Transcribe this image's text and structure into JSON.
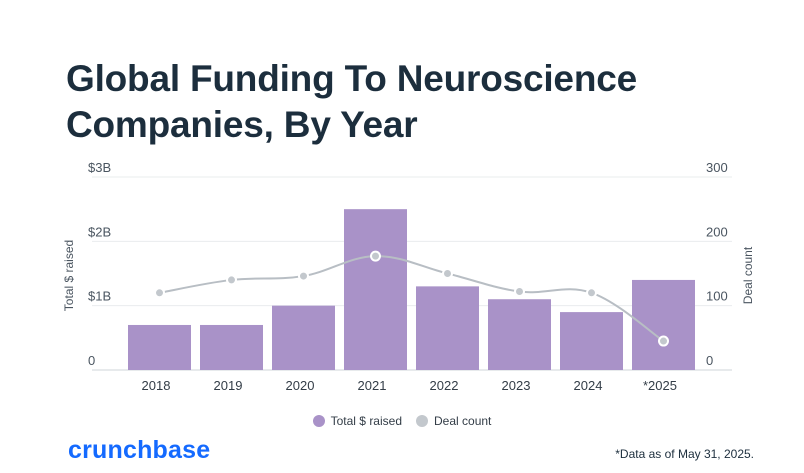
{
  "title": "Global Funding To Neuroscience Companies, By Year",
  "brand": "crunchbase",
  "footnote": "*Data as of May 31, 2025.",
  "colors": {
    "bar": "#a992c8",
    "line": "#b8bec4",
    "point": "#c3c8cd",
    "brand": "#146aff",
    "title": "#1c2e3d"
  },
  "chart_data": {
    "type": "bar",
    "categories": [
      "2018",
      "2019",
      "2020",
      "2021",
      "2022",
      "2023",
      "2024",
      "*2025"
    ],
    "series": [
      {
        "name": "Total $ raised",
        "type": "bar",
        "axis": "left",
        "values": [
          0.7,
          0.7,
          1.0,
          2.5,
          1.3,
          1.1,
          0.9,
          1.4
        ]
      },
      {
        "name": "Deal count",
        "type": "line",
        "axis": "right",
        "values": [
          120,
          140,
          146,
          177,
          150,
          122,
          120,
          45
        ]
      }
    ],
    "ylabel": "Total $ raised",
    "y2label": "Deal count",
    "ylim": [
      0,
      3
    ],
    "y2lim": [
      0,
      300
    ],
    "yticks": [
      {
        "value": 0,
        "label": "0"
      },
      {
        "value": 1,
        "label": "$1B"
      },
      {
        "value": 2,
        "label": "$2B"
      },
      {
        "value": 3,
        "label": "$3B"
      }
    ],
    "y2ticks": [
      {
        "value": 0,
        "label": "0"
      },
      {
        "value": 100,
        "label": "100"
      },
      {
        "value": 200,
        "label": "200"
      },
      {
        "value": 300,
        "label": "300"
      }
    ],
    "grid": true,
    "legend": "bottom"
  }
}
